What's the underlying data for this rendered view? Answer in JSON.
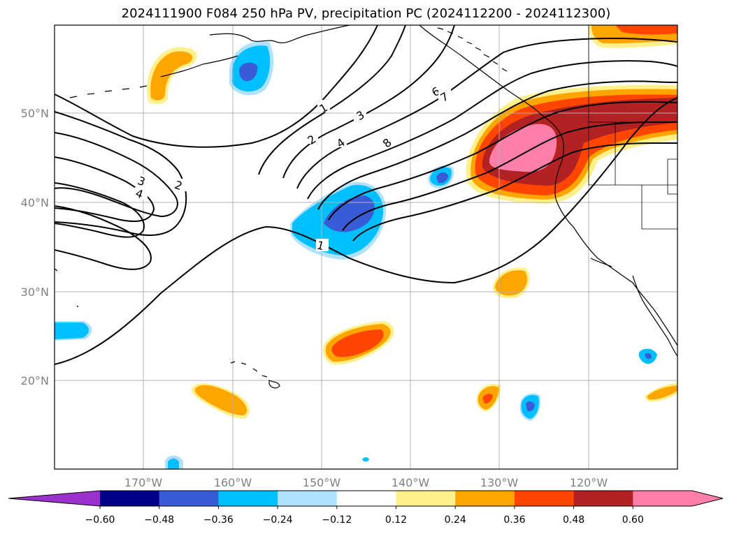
{
  "title": "2024111900 F084 250 hPa PV, precipitation PC (2024112200 - 2024112300)",
  "lon_labels": [
    "170°W",
    "160°W",
    "150°W",
    "140°W",
    "130°W",
    "120°W"
  ],
  "lat_labels": [
    "50°N",
    "40°N",
    "30°N",
    "20°N"
  ],
  "pv_contour_labels": [
    {
      "text": "1",
      "rot": -30
    },
    {
      "text": "2",
      "rot": -35
    },
    {
      "text": "3",
      "rot": -30
    },
    {
      "text": "4",
      "rot": -35
    },
    {
      "text": "6",
      "rot": -30
    },
    {
      "text": "7",
      "rot": -30
    },
    {
      "text": "8",
      "rot": -40
    },
    {
      "text": "3",
      "rot": 20
    },
    {
      "text": "2",
      "rot": 20
    },
    {
      "text": "4",
      "rot": 20
    },
    {
      "text": "1",
      "rot": 15
    }
  ],
  "colorbar": {
    "colors": [
      "#9b32cd",
      "#00008b",
      "#3a5bd6",
      "#00bfff",
      "#b0e2ff",
      "#ffffff",
      "#fff08c",
      "#ffa500",
      "#ff4500",
      "#b22222",
      "#ff7fa8",
      "#ff7fa8"
    ],
    "tick_labels": [
      "−0.60",
      "−0.48",
      "−0.36",
      "−0.24",
      "−0.12",
      "0.12",
      "0.24",
      "0.36",
      "0.48",
      "0.60"
    ]
  }
}
